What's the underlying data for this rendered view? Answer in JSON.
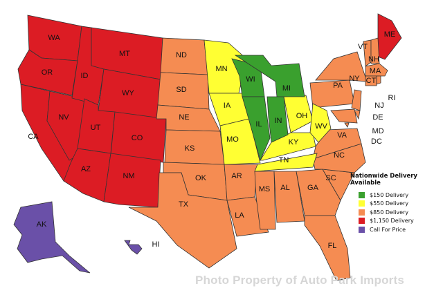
{
  "tiers": {
    "t150": {
      "label": "$150 Delivery",
      "color": "#3aa02e"
    },
    "t550": {
      "label": "$550 Delivery",
      "color": "#ffff33"
    },
    "t850": {
      "label": "$850 Delivery",
      "color": "#f58c52"
    },
    "t1150": {
      "label": "$1,150 Delivery",
      "color": "#dc1c24"
    },
    "call": {
      "label": "Call For Price",
      "color": "#6a50a8"
    }
  },
  "legend": {
    "title": "Nationwide Delivery Available",
    "items": [
      "$150 Delivery",
      "$550 Delivery",
      "$850 Delivery",
      "$1,150 Delivery",
      "Call For Price"
    ]
  },
  "states": {
    "WA": "t1150",
    "OR": "t1150",
    "CA": "t1150",
    "NV": "t1150",
    "ID": "t1150",
    "MT": "t1150",
    "WY": "t1150",
    "UT": "t1150",
    "CO": "t1150",
    "AZ": "t1150",
    "NM": "t1150",
    "ME": "t1150",
    "ND": "t850",
    "SD": "t850",
    "NE": "t850",
    "KS": "t850",
    "OK": "t850",
    "TX": "t850",
    "AR": "t850",
    "LA": "t850",
    "MS": "t850",
    "AL": "t850",
    "GA": "t850",
    "FL": "t850",
    "SC": "t850",
    "NC": "t850",
    "VA": "t850",
    "PA": "t850",
    "NY": "t850",
    "NJ": "t850",
    "DE": "t850",
    "MD": "t850",
    "DC": "t850",
    "VT": "t850",
    "NH": "t850",
    "MA": "t850",
    "CT": "t850",
    "RI": "t850",
    "MN": "t550",
    "IA": "t550",
    "MO": "t550",
    "KY": "t550",
    "TN": "t550",
    "OH": "t550",
    "WV": "t550",
    "WI": "t150",
    "IL": "t150",
    "IN": "t150",
    "MI": "t150",
    "AK": "call",
    "HI": "call"
  },
  "watermark": "Photo Property of Auto Park Imports"
}
